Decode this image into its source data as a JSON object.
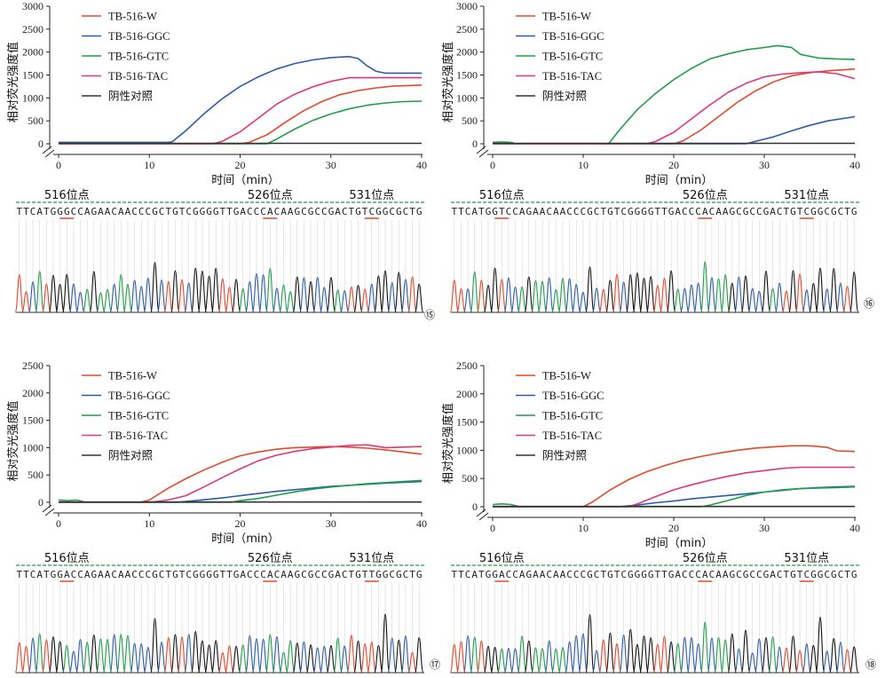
{
  "colors": {
    "W": "#e2482c",
    "GGC": "#2a5ca8",
    "GTC": "#1f9d4b",
    "TAC": "#e0367a",
    "NEG": "#333333"
  },
  "chart_data": [
    {
      "type": "line",
      "panel_label": "⑮",
      "ylabel": "相对荧光强度值",
      "xlabel": "时间（min）",
      "xlim": [
        0,
        40
      ],
      "ylim": [
        0,
        3000
      ],
      "xticks": [
        0,
        10,
        20,
        30,
        40
      ],
      "yticks": [
        0,
        500,
        1000,
        1500,
        2000,
        2500,
        3000
      ],
      "legend": [
        "TB-516-W",
        "TB-516-GGC",
        "TB-516-GTC",
        "TB-516-TAC",
        "阴性对照"
      ],
      "series": [
        {
          "name": "TB-516-W",
          "color_key": "W",
          "x": [
            0,
            20,
            21,
            23,
            25,
            27,
            29,
            31,
            33,
            35,
            37,
            40
          ],
          "y": [
            0,
            0,
            30,
            200,
            470,
            720,
            920,
            1070,
            1160,
            1220,
            1260,
            1280
          ]
        },
        {
          "name": "TB-516-GGC",
          "color_key": "GGC",
          "x": [
            0,
            12,
            12.5,
            14,
            16,
            18,
            20,
            22,
            24,
            26,
            28,
            30,
            32,
            33,
            34,
            35,
            36,
            38,
            40
          ],
          "y": [
            30,
            30,
            40,
            280,
            650,
            980,
            1250,
            1460,
            1630,
            1750,
            1830,
            1880,
            1900,
            1860,
            1700,
            1580,
            1540,
            1540,
            1540
          ]
        },
        {
          "name": "TB-516-GTC",
          "color_key": "GTC",
          "x": [
            0,
            23,
            24,
            26,
            28,
            30,
            32,
            34,
            36,
            38,
            40
          ],
          "y": [
            0,
            0,
            100,
            320,
            510,
            650,
            760,
            840,
            890,
            920,
            930
          ]
        },
        {
          "name": "TB-516-TAC",
          "color_key": "TAC",
          "x": [
            0,
            17,
            18,
            20,
            22,
            24,
            26,
            28,
            30,
            32,
            34,
            36,
            38,
            40
          ],
          "y": [
            0,
            0,
            50,
            260,
            560,
            860,
            1080,
            1240,
            1360,
            1440,
            1440,
            1440,
            1440,
            1440
          ]
        },
        {
          "name": "阴性对照",
          "color_key": "NEG",
          "x": [
            0,
            10,
            20,
            30,
            40
          ],
          "y": [
            10,
            10,
            10,
            10,
            10
          ]
        }
      ],
      "seq": {
        "text": "TTCATGGGCCAGAACAACCCGCTGTCGGGGTTGACCCACAAGCGCCGACTGTCGGCGCTG",
        "sites": [
          {
            "label": "516位点",
            "pos": 7
          },
          {
            "label": "526位点",
            "pos": 37
          },
          {
            "label": "531位点",
            "pos": 52
          }
        ]
      }
    },
    {
      "type": "line",
      "panel_label": "⑯",
      "ylabel": "相对荧光强度值",
      "xlabel": "时间（min）",
      "xlim": [
        0,
        40
      ],
      "ylim": [
        0,
        3000
      ],
      "xticks": [
        0,
        10,
        20,
        30,
        40
      ],
      "yticks": [
        0,
        500,
        1000,
        1500,
        2000,
        2500,
        3000
      ],
      "legend": [
        "TB-516-W",
        "TB-516-GGC",
        "TB-516-GTC",
        "TB-516-TAC",
        "阴性对照"
      ],
      "series": [
        {
          "name": "TB-516-W",
          "color_key": "W",
          "x": [
            0,
            20,
            21,
            23,
            25,
            27,
            29,
            31,
            33,
            35,
            37,
            40
          ],
          "y": [
            0,
            0,
            60,
            300,
            600,
            900,
            1150,
            1350,
            1480,
            1550,
            1590,
            1630
          ]
        },
        {
          "name": "TB-516-GGC",
          "color_key": "GGC",
          "x": [
            0,
            28,
            29,
            31,
            33,
            35,
            37,
            40
          ],
          "y": [
            0,
            0,
            50,
            150,
            280,
            400,
            500,
            590
          ]
        },
        {
          "name": "TB-516-GTC",
          "color_key": "GTC",
          "x": [
            0,
            1,
            2,
            2.6,
            12.8,
            14,
            16,
            18,
            20,
            22,
            24,
            26,
            28,
            30,
            31.5,
            33,
            34,
            36,
            38,
            40
          ],
          "y": [
            30,
            40,
            30,
            0,
            0,
            300,
            750,
            1100,
            1400,
            1650,
            1850,
            1960,
            2050,
            2100,
            2140,
            2100,
            1950,
            1870,
            1850,
            1840
          ]
        },
        {
          "name": "TB-516-TAC",
          "color_key": "TAC",
          "x": [
            0,
            17,
            18,
            20,
            22,
            24,
            26,
            28,
            30,
            32,
            34,
            36,
            38,
            40
          ],
          "y": [
            0,
            0,
            50,
            250,
            550,
            850,
            1120,
            1320,
            1460,
            1520,
            1550,
            1570,
            1530,
            1420
          ]
        },
        {
          "name": "阴性对照",
          "color_key": "NEG",
          "x": [
            0,
            10,
            20,
            30,
            40
          ],
          "y": [
            10,
            10,
            10,
            10,
            10
          ]
        }
      ],
      "seq": {
        "text": "TTCATGGTCCAGAACAACCCGCTGTCGGGGTTGACCCACAAGCGCCGACTGTCGGCGCTG",
        "sites": [
          {
            "label": "516位点",
            "pos": 7
          },
          {
            "label": "526位点",
            "pos": 37
          },
          {
            "label": "531位点",
            "pos": 52
          }
        ]
      }
    },
    {
      "type": "line",
      "panel_label": "⑰",
      "ylabel": "相对荧光强度值",
      "xlabel": "时间（min）",
      "xlim": [
        0,
        40
      ],
      "ylim": [
        0,
        2500
      ],
      "xticks": [
        0,
        10,
        20,
        30,
        40
      ],
      "yticks": [
        0,
        500,
        1000,
        1500,
        2000,
        2500
      ],
      "legend": [
        "TB-516-W",
        "TB-516-GGC",
        "TB-516-GTC",
        "TB-516-TAC",
        "阴性对照"
      ],
      "series": [
        {
          "name": "TB-516-W",
          "color_key": "W",
          "x": [
            0,
            9,
            10,
            12,
            14,
            16,
            18,
            20,
            22,
            24,
            26,
            28,
            30,
            32,
            34,
            36,
            38,
            40
          ],
          "y": [
            0,
            0,
            40,
            250,
            430,
            590,
            730,
            850,
            920,
            970,
            1000,
            1010,
            1020,
            1010,
            990,
            960,
            920,
            880
          ]
        },
        {
          "name": "TB-516-GGC",
          "color_key": "GGC",
          "x": [
            0,
            13,
            15,
            18,
            20,
            22,
            24,
            26,
            28,
            30,
            33,
            36,
            40
          ],
          "y": [
            0,
            0,
            30,
            80,
            120,
            160,
            200,
            230,
            260,
            290,
            320,
            350,
            380
          ]
        },
        {
          "name": "TB-516-GTC",
          "color_key": "GTC",
          "x": [
            0,
            1,
            2,
            3,
            19,
            20,
            22,
            24,
            26,
            28,
            30,
            32,
            34,
            36,
            38,
            40
          ],
          "y": [
            40,
            30,
            40,
            0,
            0,
            30,
            70,
            130,
            190,
            240,
            280,
            310,
            340,
            360,
            380,
            400
          ]
        },
        {
          "name": "TB-516-TAC",
          "color_key": "TAC",
          "x": [
            0,
            10,
            12,
            14,
            16,
            18,
            20,
            22,
            24,
            26,
            28,
            30,
            32,
            34,
            36,
            38,
            40
          ],
          "y": [
            0,
            0,
            40,
            120,
            280,
            450,
            610,
            760,
            860,
            930,
            980,
            1010,
            1040,
            1050,
            1000,
            1010,
            1020
          ]
        },
        {
          "name": "阴性对照",
          "color_key": "NEG",
          "x": [
            0,
            10,
            20,
            30,
            40
          ],
          "y": [
            5,
            5,
            5,
            5,
            5
          ]
        }
      ],
      "seq": {
        "text": "TTCATGGACCAGAACAACCCGCTGTCGGGGTTGACCCACAAGCGCCGACTGTTGGCGCTG",
        "sites": [
          {
            "label": "516位点",
            "pos": 7
          },
          {
            "label": "526位点",
            "pos": 37
          },
          {
            "label": "531位点",
            "pos": 52
          }
        ]
      }
    },
    {
      "type": "line",
      "panel_label": "⑱",
      "ylabel": "相对荧光强度值",
      "xlabel": "时间（min）",
      "xlim": [
        0,
        40
      ],
      "ylim": [
        0,
        2500
      ],
      "xticks": [
        0,
        10,
        20,
        30,
        40
      ],
      "yticks": [
        0,
        500,
        1000,
        1500,
        2000,
        2500
      ],
      "legend": [
        "TB-516-W",
        "TB-516-GGC",
        "TB-516-GTC",
        "TB-516-TAC",
        "阴性对照"
      ],
      "series": [
        {
          "name": "TB-516-W",
          "color_key": "W",
          "x": [
            0,
            10,
            11,
            13,
            15,
            17,
            19,
            21,
            23,
            25,
            27,
            29,
            31,
            33,
            35,
            37,
            38,
            40
          ],
          "y": [
            0,
            0,
            80,
            300,
            480,
            620,
            730,
            820,
            890,
            950,
            1000,
            1040,
            1060,
            1080,
            1080,
            1050,
            990,
            980
          ]
        },
        {
          "name": "TB-516-GGC",
          "color_key": "GGC",
          "x": [
            0,
            14,
            16,
            18,
            20,
            22,
            24,
            26,
            28,
            30,
            32,
            34,
            36,
            38,
            40
          ],
          "y": [
            0,
            0,
            30,
            70,
            100,
            140,
            170,
            200,
            230,
            260,
            290,
            320,
            340,
            350,
            360
          ]
        },
        {
          "name": "TB-516-GTC",
          "color_key": "GTC",
          "x": [
            0,
            1,
            2,
            3,
            23,
            24,
            26,
            28,
            30,
            32,
            34,
            36,
            38,
            40
          ],
          "y": [
            40,
            50,
            40,
            0,
            0,
            30,
            110,
            200,
            260,
            300,
            320,
            330,
            340,
            350
          ]
        },
        {
          "name": "TB-516-TAC",
          "color_key": "TAC",
          "x": [
            0,
            15,
            16,
            18,
            20,
            22,
            24,
            26,
            28,
            30,
            32,
            34,
            36,
            38,
            40
          ],
          "y": [
            0,
            0,
            50,
            180,
            300,
            390,
            470,
            540,
            600,
            640,
            680,
            700,
            700,
            700,
            700
          ]
        },
        {
          "name": "阴性对照",
          "color_key": "NEG",
          "x": [
            0,
            10,
            20,
            30,
            40
          ],
          "y": [
            5,
            5,
            5,
            5,
            5
          ]
        }
      ],
      "seq": {
        "text": "TTCATGGACCAGAACAACCCGCTGTCGGGGTTGACCCACAAGCGCCGACTGTCGGCGCTG",
        "sites": [
          {
            "label": "516位点",
            "pos": 7
          },
          {
            "label": "526位点",
            "pos": 37
          },
          {
            "label": "531位点",
            "pos": 52
          }
        ]
      }
    }
  ]
}
